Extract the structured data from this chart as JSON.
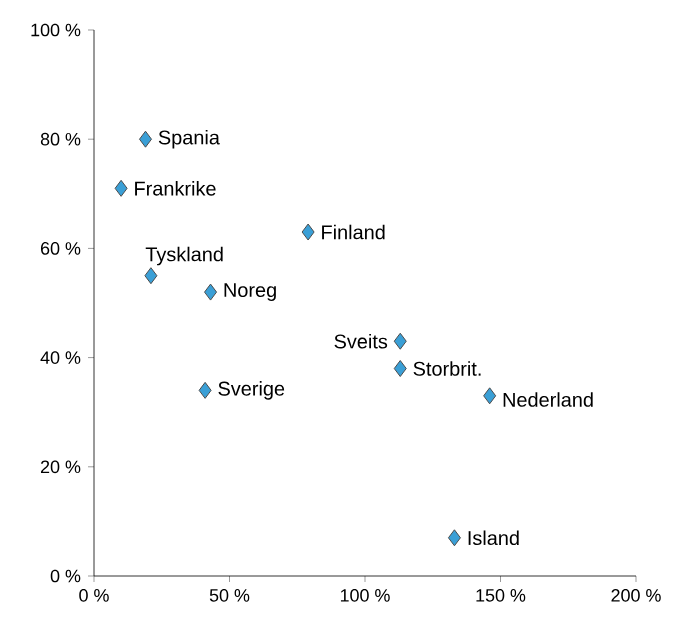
{
  "chart_data": {
    "type": "scatter",
    "marker": "diamond",
    "color": "#3a9fd6",
    "x": [
      19,
      10,
      79,
      21,
      43,
      113,
      113,
      146,
      41,
      133
    ],
    "values": [
      80,
      71,
      63,
      55,
      52,
      43,
      38,
      33,
      34,
      7
    ],
    "xlim": [
      0,
      200
    ],
    "ylim": [
      0,
      100
    ],
    "xticks": [
      {
        "value": 0,
        "label": "0 %"
      },
      {
        "value": 50,
        "label": "50 %"
      },
      {
        "value": 100,
        "label": "100 %"
      },
      {
        "value": 150,
        "label": "150 %"
      },
      {
        "value": 200,
        "label": "200 %"
      }
    ],
    "yticks": [
      {
        "value": 0,
        "label": "0 %"
      },
      {
        "value": 20,
        "label": "20 %"
      },
      {
        "value": 40,
        "label": "40 %"
      },
      {
        "value": 60,
        "label": "60 %"
      },
      {
        "value": 80,
        "label": "80 %"
      },
      {
        "value": 100,
        "label": "100 %"
      }
    ],
    "annotations": [
      {
        "text": "Spania",
        "x": 19,
        "y": 80
      },
      {
        "text": "Frankrike",
        "x": 10,
        "y": 71
      },
      {
        "text": "Finland",
        "x": 79,
        "y": 63
      },
      {
        "text": "Tyskland",
        "x": 21,
        "y": 55
      },
      {
        "text": "Noreg",
        "x": 43,
        "y": 52
      },
      {
        "text": "Sveits",
        "x": 113,
        "y": 43
      },
      {
        "text": "Storbrit.",
        "x": 113,
        "y": 38
      },
      {
        "text": "Nederland",
        "x": 146,
        "y": 33
      },
      {
        "text": "Sverige",
        "x": 41,
        "y": 34
      },
      {
        "text": "Island",
        "x": 133,
        "y": 7
      }
    ]
  }
}
